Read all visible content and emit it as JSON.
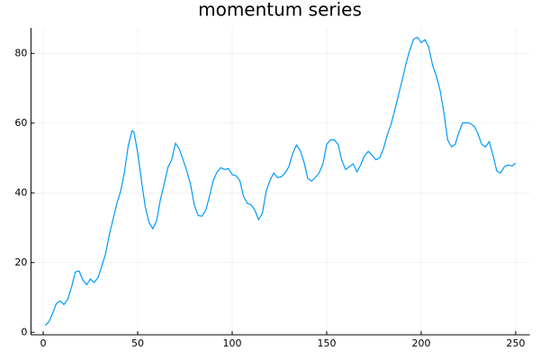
{
  "chart_data": {
    "type": "line",
    "title": "momentum series",
    "x": [
      1,
      3,
      5,
      7,
      9,
      11,
      13,
      15,
      17,
      19,
      21,
      23,
      25,
      27,
      29,
      31,
      33,
      35,
      37,
      39,
      41,
      43,
      45,
      47,
      48,
      50,
      52,
      54,
      56,
      58,
      60,
      62,
      64,
      66,
      68,
      70,
      72,
      74,
      76,
      78,
      80,
      82,
      84,
      86,
      88,
      90,
      92,
      94,
      96,
      98,
      100,
      102,
      104,
      106,
      108,
      110,
      112,
      114,
      116,
      118,
      120,
      122,
      124,
      126,
      128,
      130,
      132,
      134,
      136,
      138,
      140,
      142,
      144,
      146,
      148,
      150,
      152,
      154,
      156,
      158,
      160,
      162,
      164,
      166,
      168,
      170,
      172,
      174,
      176,
      178,
      180,
      182,
      184,
      186,
      188,
      190,
      192,
      194,
      196,
      198,
      200,
      202,
      204,
      206,
      208,
      210,
      212,
      214,
      216,
      218,
      220,
      222,
      224,
      226,
      228,
      230,
      232,
      234,
      236,
      238,
      240,
      242,
      244,
      246,
      248,
      250
    ],
    "series": [
      {
        "color": "#009af9",
        "values": [
          2,
          3,
          5.5,
          8.3,
          9,
          8,
          9.5,
          13,
          17.3,
          17.6,
          15,
          13.7,
          15.3,
          14.3,
          15.7,
          19,
          22.5,
          28,
          32.5,
          37,
          40.5,
          46,
          53.5,
          57.8,
          57.5,
          51.5,
          43.5,
          36,
          31.5,
          29.7,
          32,
          38,
          42.5,
          47.3,
          49.5,
          54.2,
          52.6,
          49.5,
          46.3,
          42.3,
          36.4,
          33.5,
          33.3,
          35,
          39,
          43.6,
          46,
          47.2,
          46.7,
          47,
          45.2,
          44.9,
          43.6,
          39,
          37,
          36.6,
          35,
          32.3,
          34.3,
          40.5,
          43.6,
          45.7,
          44.4,
          44.6,
          45.7,
          47.5,
          51.3,
          53.7,
          52.1,
          48.8,
          44.1,
          43.4,
          44.4,
          45.7,
          48.3,
          53.9,
          55.2,
          55.2,
          53.9,
          49.3,
          46.7,
          47.5,
          48.3,
          46,
          48,
          50.6,
          51.9,
          50.8,
          49.5,
          50,
          52.6,
          56.5,
          59.6,
          63.7,
          68.1,
          72.5,
          77.2,
          81,
          84.1,
          84.6,
          83.1,
          83.9,
          81.8,
          76.6,
          73.5,
          69.4,
          63,
          55.2,
          53.2,
          53.9,
          57.5,
          60.1,
          60.1,
          59.9,
          59.1,
          57,
          53.9,
          53.2,
          54.7,
          50.8,
          46.2,
          45.7,
          47.5,
          48,
          47.7,
          48.5
        ]
      }
    ],
    "xlim": [
      -6.47,
      257.47
    ],
    "xticks": [
      0,
      50,
      100,
      150,
      200,
      250
    ],
    "ylim": [
      -0.7,
      87.3
    ],
    "yticks": [
      0,
      20,
      40,
      60,
      80
    ],
    "grid": true
  }
}
